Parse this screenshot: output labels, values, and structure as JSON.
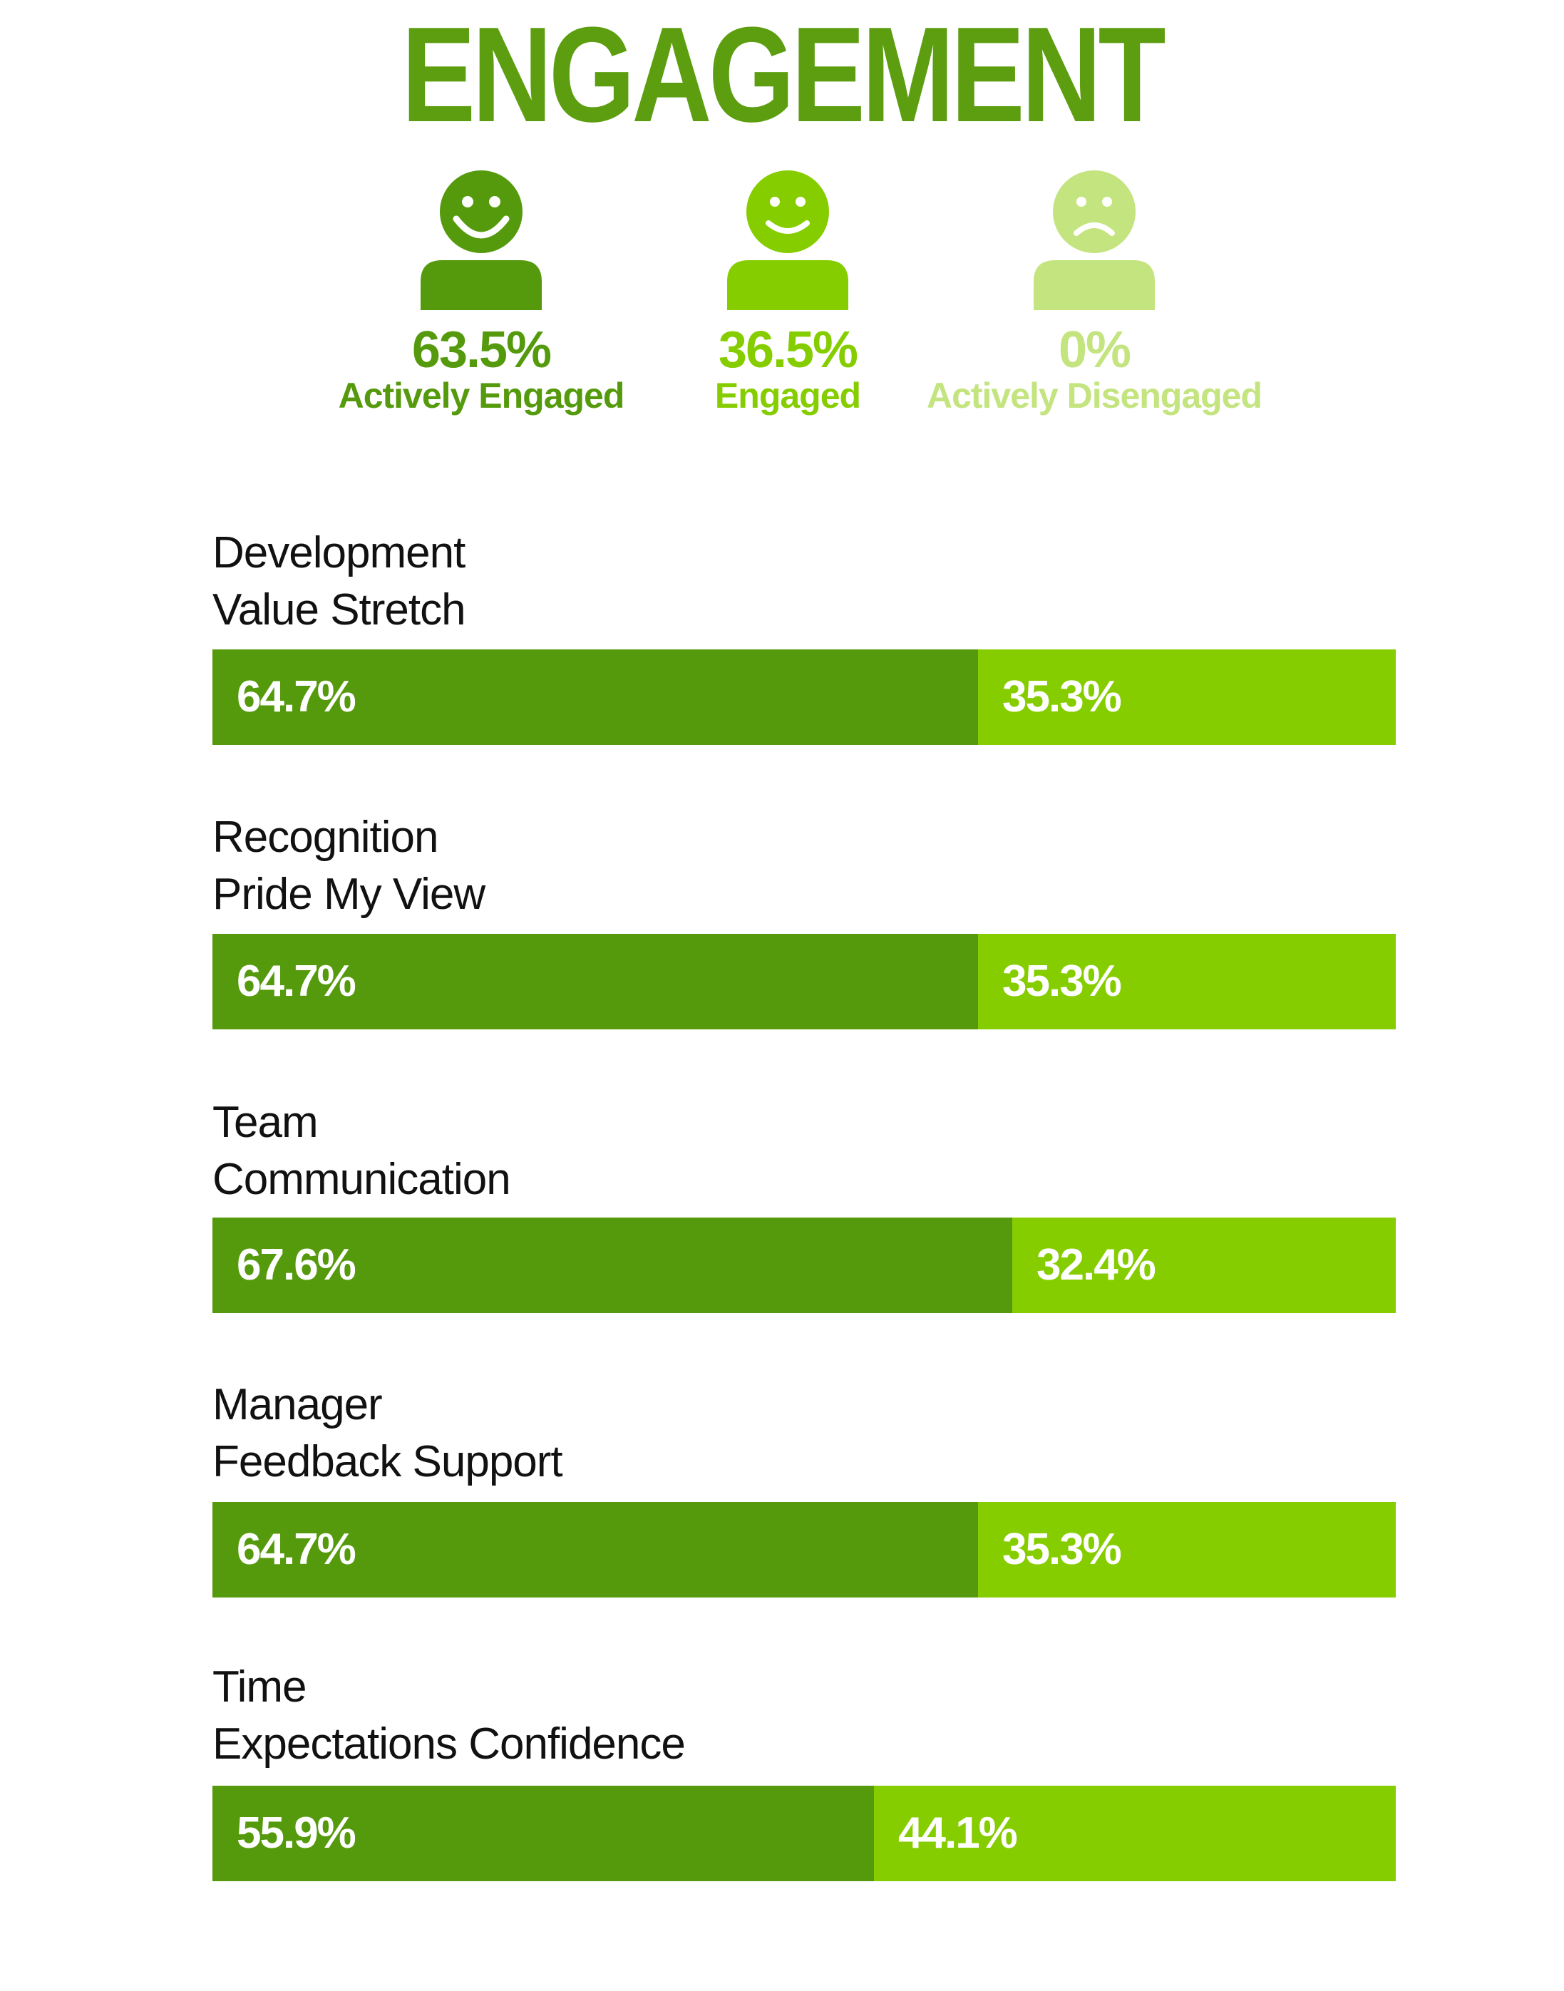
{
  "title": "ENGAGEMENT",
  "colors": {
    "title": "#5c9e10",
    "actively_engaged": "#559a0c",
    "engaged": "#86cd00",
    "actively_disengaged": "#c3e47e",
    "category_text": "#111111",
    "bar_label": "#ffffff"
  },
  "summary": [
    {
      "value": "63.5%",
      "label": "Actively Engaged",
      "icon": "happy-person-icon"
    },
    {
      "value": "36.5%",
      "label": "Engaged",
      "icon": "smiling-person-icon"
    },
    {
      "value": "0%",
      "label": "Actively Disengaged",
      "icon": "sad-person-icon"
    }
  ],
  "chart_data": {
    "type": "bar",
    "orientation": "horizontal-stacked-100",
    "categories": [
      [
        "Development",
        "Value Stretch"
      ],
      [
        "Recognition",
        "Pride My View"
      ],
      [
        "Team",
        "Communication"
      ],
      [
        "Manager",
        "Feedback Support"
      ],
      [
        "Time",
        "Expectations Confidence"
      ]
    ],
    "series": [
      {
        "values": [
          64.7,
          64.7,
          67.6,
          64.7,
          55.9
        ],
        "labels": [
          "64.7%",
          "64.7%",
          "67.6%",
          "64.7%",
          "55.9%"
        ]
      },
      {
        "values": [
          35.3,
          35.3,
          32.4,
          35.3,
          44.1
        ],
        "labels": [
          "35.3%",
          "35.3%",
          "32.4%",
          "35.3%",
          "44.1%"
        ]
      }
    ],
    "xlim": [
      0,
      100
    ],
    "grid": false
  }
}
